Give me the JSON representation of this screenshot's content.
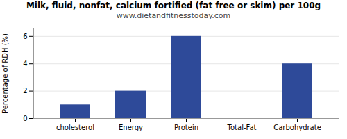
{
  "chart_data": {
    "type": "bar",
    "title": "Milk, fluid, nonfat, calcium fortified (fat free or skim) per 100g",
    "subtitle": "www.dietandfitnesstoday.com",
    "categories": [
      "cholesterol",
      "Energy",
      "Protein",
      "Total-Fat",
      "Carbohydrate"
    ],
    "values": [
      1.0,
      2.0,
      6.0,
      0.0,
      4.0
    ],
    "color": "#2e4a99",
    "ylabel": "Percentage of RDH (%)",
    "ylim": [
      0,
      6.6
    ],
    "yticks": [
      0,
      2,
      4,
      6
    ],
    "grid": true
  }
}
